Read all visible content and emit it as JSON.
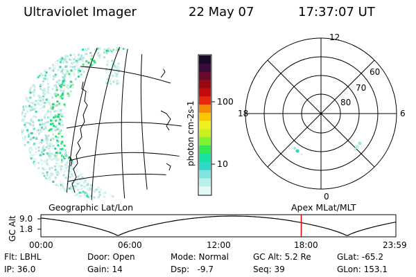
{
  "header": {
    "title": "Ultraviolet Imager",
    "date": "22 May 07",
    "time": "17:37:07 UT"
  },
  "colorbar": {
    "unit_label": "photon cm-2s-1",
    "ticks": [
      "100",
      "10"
    ],
    "colors": [
      "#1a0a26",
      "#3a0a3a",
      "#6a0a2a",
      "#9a0a14",
      "#c40a0a",
      "#e8280a",
      "#f08a00",
      "#f8c800",
      "#f0f020",
      "#c8f020",
      "#80f030",
      "#30e850",
      "#18e0a0",
      "#30d8c8",
      "#80e4e0",
      "#b8f0ec",
      "#e4f8f6"
    ]
  },
  "polar": {
    "mlt_labels": [
      "12",
      "18",
      "6",
      "0"
    ],
    "lat_labels": [
      "60",
      "70",
      "80"
    ]
  },
  "projection_labels": {
    "left": "Geographic Lat/Lon",
    "right": "Apex MLat/MLT"
  },
  "altitude_plot": {
    "ylabel": "GC Alt",
    "yticks": [
      "9.0",
      "1.8"
    ],
    "xticks": [
      "00:00",
      "06:00",
      "12:00",
      "18:00",
      "23:59"
    ],
    "current_time_hours": 17.6,
    "marker_color": "#e00000"
  },
  "info": {
    "flt": "Flt: LBHL",
    "door": "Door: Open",
    "mode": "Mode: Normal",
    "gc_alt": "GC Alt: 5.2 Re",
    "glat": "GLat: -65.2",
    "ip": "IP: 36.0",
    "gain": "Gain: 14",
    "dsp": "Dsp:   -9.7",
    "seq": "Seq: 39",
    "glon": "GLon: 153.1"
  }
}
